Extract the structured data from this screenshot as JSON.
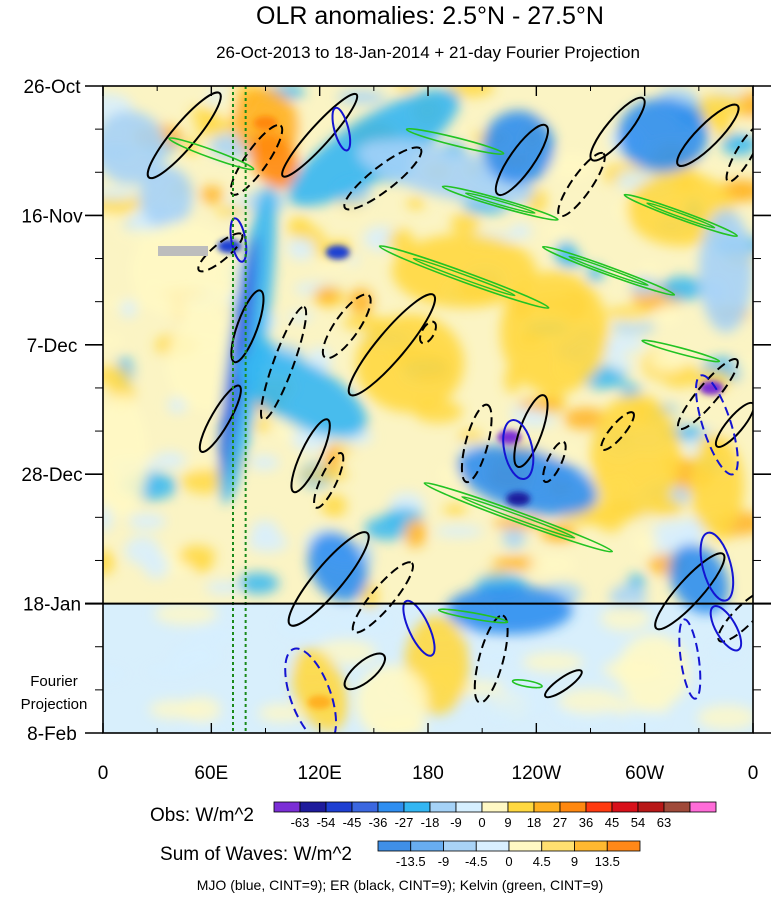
{
  "chart_data": {
    "type": "heatmap",
    "title": "OLR anomalies: 2.5°N - 27.5°N",
    "subtitle": "26-Oct-2013 to 18-Jan-2014 + 21-day Fourier Projection",
    "x_tick_labels": [
      "0",
      "60E",
      "120E",
      "180",
      "120W",
      "60W",
      "0"
    ],
    "x_tick_values_deg_east": [
      0,
      60,
      120,
      180,
      240,
      300,
      360
    ],
    "xlim_deg_east": [
      0,
      360
    ],
    "y_tick_labels": [
      "26-Oct",
      "16-Nov",
      "7-Dec",
      "28-Dec",
      "18-Jan",
      "8-Feb"
    ],
    "y_tick_day_offsets": [
      0,
      21,
      42,
      63,
      84,
      105
    ],
    "ylim_days": [
      0,
      105
    ],
    "observation_end_day": 84,
    "projection_label": [
      "Fourier",
      "Projection"
    ],
    "dotted_reference_longitudes_deg_east": [
      72,
      79
    ],
    "obs_colorbar": {
      "label": "Obs: W/m^2",
      "levels": [
        "-63",
        "-54",
        "-45",
        "-36",
        "-27",
        "-18",
        "-9",
        "0",
        "9",
        "18",
        "27",
        "36",
        "45",
        "54",
        "63"
      ],
      "colors": [
        "#7b2ed6",
        "#1e1b9c",
        "#1e3fd2",
        "#3b67e0",
        "#2f8ef0",
        "#33b6f2",
        "#a5d2f7",
        "#d6efff",
        "#fff8c4",
        "#ffd840",
        "#ffb020",
        "#ff8810",
        "#ff3a10",
        "#d8101a",
        "#b81818",
        "#a04a3a",
        "#ff6cd8"
      ]
    },
    "waves_colorbar": {
      "label": "Sum of Waves: W/m^2",
      "levels": [
        "-13.5",
        "-9",
        "-4.5",
        "0",
        "4.5",
        "9",
        "13.5"
      ],
      "colors": [
        "#3f8fe6",
        "#68adf0",
        "#a9d3f6",
        "#d9efff",
        "#fff8c4",
        "#ffe070",
        "#ffb830",
        "#ff8818"
      ]
    },
    "contour_legend": "MJO (blue, CINT=9); ER (black, CINT=9); Kelvin (green, CINT=9)",
    "wave_series": [
      {
        "name": "MJO",
        "color": "#1414d2",
        "cint": 9
      },
      {
        "name": "ER",
        "color": "#000000",
        "cint": 9
      },
      {
        "name": "Kelvin",
        "color": "#22c322",
        "cint": 9
      }
    ],
    "notable_features": [
      {
        "type": "obs_min",
        "lon": 70,
        "day": 26,
        "value": -45
      },
      {
        "type": "obs_min",
        "lon": 130,
        "day": 27,
        "value": -45
      },
      {
        "type": "obs_min",
        "lon": 225,
        "day": 57,
        "value": -63
      },
      {
        "type": "obs_min",
        "lon": 230,
        "day": 67,
        "value": -54
      },
      {
        "type": "obs_min",
        "lon": 337,
        "day": 49,
        "value": -63
      },
      {
        "type": "obs_max",
        "lon": 120,
        "day": 100,
        "value": 27
      },
      {
        "type": "obs_max",
        "lon": 90,
        "day": 6,
        "value": 36
      }
    ],
    "contours": [
      {
        "w": "ER",
        "neg": false,
        "lon": 45,
        "day": 8,
        "dx": 55,
        "dy": 12,
        "rot": -50
      },
      {
        "w": "ER",
        "neg": true,
        "lon": 85,
        "day": 12,
        "dx": 42,
        "dy": 11,
        "rot": -55
      },
      {
        "w": "ER",
        "neg": false,
        "lon": 120,
        "day": 8,
        "dx": 55,
        "dy": 10,
        "rot": -48
      },
      {
        "w": "ER",
        "neg": true,
        "lon": 155,
        "day": 15,
        "dx": 48,
        "dy": 12,
        "rot": -38
      },
      {
        "w": "ER",
        "neg": false,
        "lon": 232,
        "day": 12,
        "dx": 42,
        "dy": 12,
        "rot": -55
      },
      {
        "w": "ER",
        "neg": true,
        "lon": 265,
        "day": 16,
        "dx": 38,
        "dy": 10,
        "rot": -55
      },
      {
        "w": "ER",
        "neg": false,
        "lon": 285,
        "day": 7,
        "dx": 40,
        "dy": 11,
        "rot": -50
      },
      {
        "w": "ER",
        "neg": false,
        "lon": 335,
        "day": 8,
        "dx": 42,
        "dy": 11,
        "rot": -45
      },
      {
        "w": "ER",
        "neg": true,
        "lon": 355,
        "day": 11,
        "dx": 32,
        "dy": 8,
        "rot": -60
      },
      {
        "w": "ER",
        "neg": true,
        "lon": 65,
        "day": 27,
        "dx": 28,
        "dy": 8,
        "rot": -40
      },
      {
        "w": "ER",
        "neg": false,
        "lon": 80,
        "day": 39,
        "dx": 38,
        "dy": 10,
        "rot": -70
      },
      {
        "w": "ER",
        "neg": true,
        "lon": 100,
        "day": 45,
        "dx": 60,
        "dy": 10,
        "rot": -70
      },
      {
        "w": "ER",
        "neg": true,
        "lon": 135,
        "day": 39,
        "dx": 38,
        "dy": 12,
        "rot": -55
      },
      {
        "w": "ER",
        "neg": false,
        "lon": 160,
        "day": 42,
        "dx": 65,
        "dy": 14,
        "rot": -50
      },
      {
        "w": "ER",
        "neg": true,
        "lon": 180,
        "day": 40,
        "dx": 12,
        "dy": 6,
        "rot": -60
      },
      {
        "w": "ER",
        "neg": false,
        "lon": 65,
        "day": 54,
        "dx": 38,
        "dy": 9,
        "rot": -60
      },
      {
        "w": "ER",
        "neg": false,
        "lon": 115,
        "day": 60,
        "dx": 40,
        "dy": 10,
        "rot": -65
      },
      {
        "w": "ER",
        "neg": true,
        "lon": 125,
        "day": 64,
        "dx": 30,
        "dy": 8,
        "rot": -65
      },
      {
        "w": "ER",
        "neg": true,
        "lon": 207,
        "day": 58,
        "dx": 40,
        "dy": 11,
        "rot": -75
      },
      {
        "w": "ER",
        "neg": false,
        "lon": 237,
        "day": 56,
        "dx": 38,
        "dy": 11,
        "rot": -70
      },
      {
        "w": "ER",
        "neg": true,
        "lon": 250,
        "day": 61,
        "dx": 22,
        "dy": 7,
        "rot": -65
      },
      {
        "w": "ER",
        "neg": true,
        "lon": 285,
        "day": 56,
        "dx": 24,
        "dy": 7,
        "rot": -50
      },
      {
        "w": "ER",
        "neg": true,
        "lon": 335,
        "day": 50,
        "dx": 45,
        "dy": 10,
        "rot": -50
      },
      {
        "w": "ER",
        "neg": false,
        "lon": 350,
        "day": 55,
        "dx": 28,
        "dy": 8,
        "rot": -50
      },
      {
        "w": "ER",
        "neg": false,
        "lon": 125,
        "day": 80,
        "dx": 60,
        "dy": 14,
        "rot": -50
      },
      {
        "w": "ER",
        "neg": true,
        "lon": 155,
        "day": 83,
        "dx": 45,
        "dy": 11,
        "rot": -50
      },
      {
        "w": "ER",
        "neg": false,
        "lon": 145,
        "day": 95,
        "dx": 25,
        "dy": 10,
        "rot": -40
      },
      {
        "w": "ER",
        "neg": true,
        "lon": 215,
        "day": 93,
        "dx": 45,
        "dy": 12,
        "rot": -75
      },
      {
        "w": "ER",
        "neg": false,
        "lon": 255,
        "day": 97,
        "dx": 22,
        "dy": 6,
        "rot": -35
      },
      {
        "w": "ER",
        "neg": false,
        "lon": 325,
        "day": 82,
        "dx": 50,
        "dy": 12,
        "rot": -48
      },
      {
        "w": "ER",
        "neg": true,
        "lon": 355,
        "day": 86,
        "dx": 35,
        "dy": 10,
        "rot": -45
      },
      {
        "w": "MJO",
        "neg": false,
        "lon": 132,
        "day": 7,
        "dx": 22,
        "dy": 7,
        "rot": 75
      },
      {
        "w": "MJO",
        "neg": false,
        "lon": 75,
        "day": 25,
        "dx": 22,
        "dy": 7,
        "rot": 80
      },
      {
        "w": "MJO",
        "neg": false,
        "lon": 230,
        "day": 59,
        "dx": 30,
        "dy": 14,
        "rot": 78
      },
      {
        "w": "MJO",
        "neg": true,
        "lon": 340,
        "day": 55,
        "dx": 52,
        "dy": 14,
        "rot": 72
      },
      {
        "w": "MJO",
        "neg": false,
        "lon": 340,
        "day": 78,
        "dx": 35,
        "dy": 14,
        "rot": 75
      },
      {
        "w": "MJO",
        "neg": false,
        "lon": 175,
        "day": 88,
        "dx": 30,
        "dy": 10,
        "rot": 65
      },
      {
        "w": "MJO",
        "neg": true,
        "lon": 115,
        "day": 99,
        "dx": 50,
        "dy": 20,
        "rot": 70
      },
      {
        "w": "MJO",
        "neg": true,
        "lon": 325,
        "day": 93,
        "dx": 40,
        "dy": 9,
        "rot": 82
      },
      {
        "w": "MJO",
        "neg": false,
        "lon": 345,
        "day": 88,
        "dx": 25,
        "dy": 10,
        "rot": 60
      },
      {
        "w": "Kelvin",
        "neg": false,
        "lon": 195,
        "day": 9,
        "dx": 50,
        "dy": 4,
        "rot": 14
      },
      {
        "w": "Kelvin",
        "neg": false,
        "lon": 220,
        "day": 19,
        "dx": 60,
        "dy": 4,
        "rot": 16
      },
      {
        "w": "Kelvin",
        "neg": false,
        "lon": 200,
        "day": 31,
        "dx": 90,
        "dy": 5,
        "rot": 20
      },
      {
        "w": "Kelvin",
        "neg": false,
        "lon": 230,
        "day": 70,
        "dx": 100,
        "dy": 5,
        "rot": 20
      },
      {
        "w": "Kelvin",
        "neg": false,
        "lon": 280,
        "day": 30,
        "dx": 70,
        "dy": 4,
        "rot": 20
      },
      {
        "w": "Kelvin",
        "neg": false,
        "lon": 320,
        "day": 21,
        "dx": 60,
        "dy": 4,
        "rot": 20
      },
      {
        "w": "Kelvin",
        "neg": false,
        "lon": 60,
        "day": 11,
        "dx": 45,
        "dy": 4,
        "rot": 20
      },
      {
        "w": "Kelvin",
        "neg": false,
        "lon": 320,
        "day": 43,
        "dx": 40,
        "dy": 3,
        "rot": 15
      },
      {
        "w": "Kelvin",
        "neg": false,
        "lon": 205,
        "day": 86,
        "dx": 35,
        "dy": 3,
        "rot": 10
      },
      {
        "w": "Kelvin",
        "neg": false,
        "lon": 235,
        "day": 97,
        "dx": 15,
        "dy": 3,
        "rot": 10
      }
    ]
  }
}
